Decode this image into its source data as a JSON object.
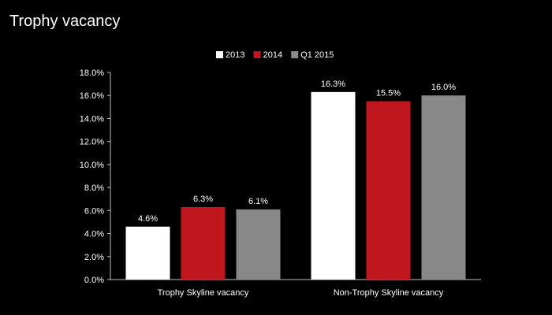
{
  "slide": {
    "title": "Trophy vacancy"
  },
  "chart_data": {
    "type": "bar",
    "title": "",
    "xlabel": "",
    "ylabel": "",
    "categories": [
      "Trophy Skyline vacancy",
      "Non-Trophy Skyline vacancy"
    ],
    "series": [
      {
        "name": "2013",
        "values": [
          4.6,
          16.3
        ],
        "labels": [
          "4.6%",
          "16.3%"
        ],
        "color": "#ffffff"
      },
      {
        "name": "2014",
        "values": [
          6.3,
          15.5
        ],
        "labels": [
          "6.3%",
          "15.5%"
        ],
        "color": "#c0161d"
      },
      {
        "name": "Q1 2015",
        "values": [
          6.1,
          16.0
        ],
        "labels": [
          "6.1%",
          "16.0%"
        ],
        "color": "#888888"
      }
    ],
    "ylim": [
      0,
      18
    ],
    "yticks": [
      0,
      2,
      4,
      6,
      8,
      10,
      12,
      14,
      16,
      18
    ],
    "ytick_labels": [
      "0.0%",
      "2.0%",
      "4.0%",
      "6.0%",
      "8.0%",
      "10.0%",
      "12.0%",
      "14.0%",
      "16.0%",
      "18.0%"
    ],
    "grid": false,
    "legend_position": "top-center"
  }
}
